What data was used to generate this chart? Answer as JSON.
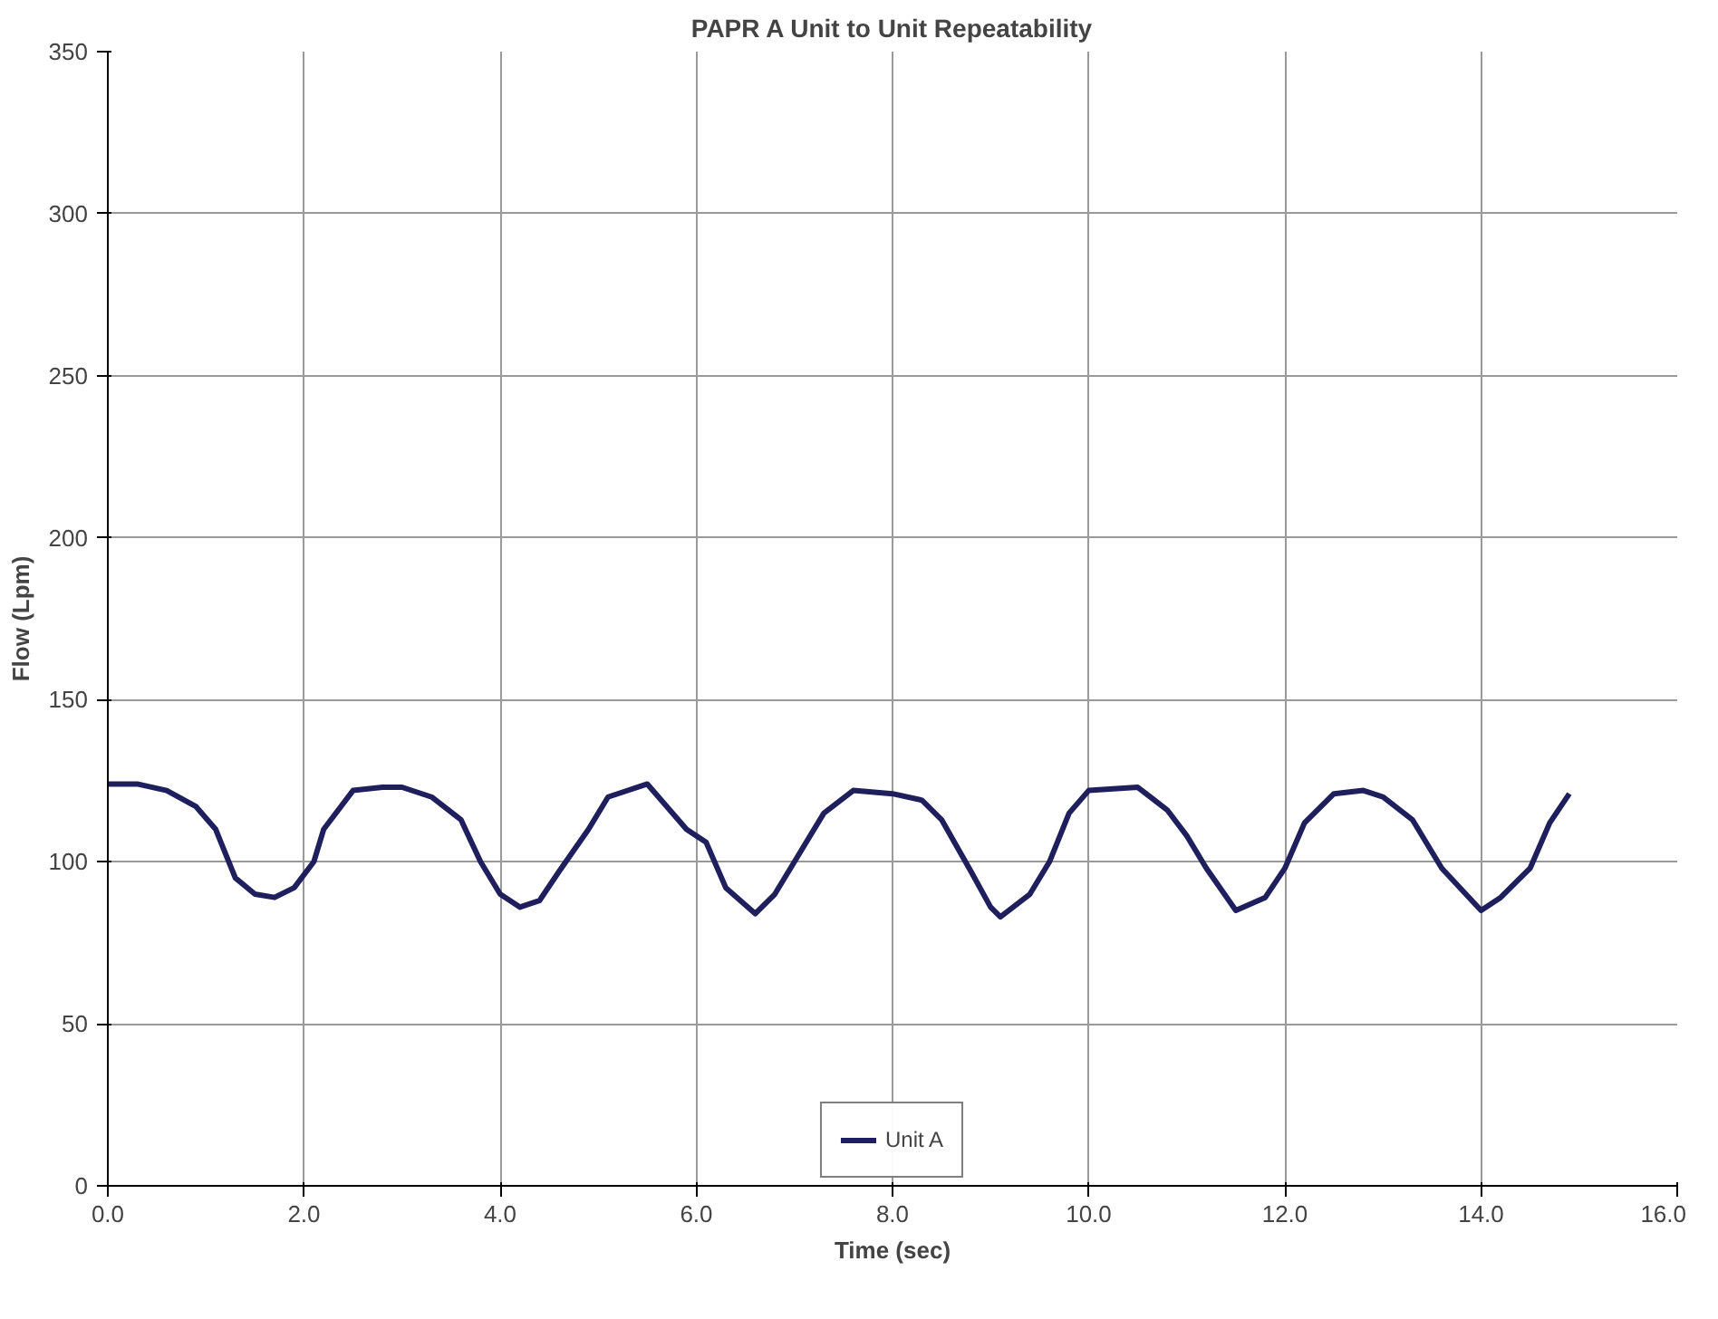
{
  "chart_data": {
    "type": "line",
    "title": "PAPR A Unit to Unit Repeatability",
    "xlabel": "Time (sec)",
    "ylabel": "Flow (Lpm)",
    "x": [
      0,
      0.3,
      0.6,
      0.9,
      1.1,
      1.3,
      1.5,
      1.7,
      1.9,
      2.1,
      2.2,
      2.5,
      2.8,
      3.0,
      3.3,
      3.6,
      3.8,
      4.0,
      4.2,
      4.4,
      4.6,
      4.9,
      5.1,
      5.5,
      5.7,
      5.9,
      6.1,
      6.3,
      6.6,
      6.8,
      7.0,
      7.3,
      7.6,
      8.0,
      8.3,
      8.5,
      8.8,
      9.0,
      9.1,
      9.4,
      9.6,
      9.8,
      10.0,
      10.5,
      10.8,
      11.0,
      11.2,
      11.5,
      11.8,
      12.0,
      12.2,
      12.5,
      12.8,
      13.0,
      13.3,
      13.6,
      14.0,
      14.2,
      14.5,
      14.7,
      14.9
    ],
    "series": [
      {
        "name": "Unit A",
        "color": "#1f1f5e",
        "values": [
          124,
          124,
          122,
          117,
          110,
          95,
          90,
          89,
          92,
          100,
          110,
          122,
          123,
          123,
          120,
          113,
          100,
          90,
          86,
          88,
          97,
          110,
          120,
          124,
          117,
          110,
          106,
          92,
          84,
          90,
          100,
          115,
          122,
          121,
          119,
          113,
          97,
          86,
          83,
          90,
          100,
          115,
          122,
          123,
          116,
          108,
          98,
          85,
          89,
          98,
          112,
          121,
          122,
          120,
          113,
          98,
          85,
          89,
          98,
          112,
          121
        ]
      }
    ],
    "xlim": [
      0,
      16
    ],
    "xticks": [
      {
        "value": 0,
        "label": "0.0"
      },
      {
        "value": 2,
        "label": "2.0"
      },
      {
        "value": 4,
        "label": "4.0"
      },
      {
        "value": 6,
        "label": "6.0"
      },
      {
        "value": 8,
        "label": "8.0"
      },
      {
        "value": 10,
        "label": "10.0"
      },
      {
        "value": 12,
        "label": "12.0"
      },
      {
        "value": 14,
        "label": "14.0"
      },
      {
        "value": 16,
        "label": "16.0"
      }
    ],
    "ylim": [
      0,
      350
    ],
    "yticks": [
      0,
      50,
      100,
      150,
      200,
      250,
      300,
      350
    ],
    "grid": true,
    "legend": "bottom",
    "marker": "none",
    "line_style": "solid"
  }
}
